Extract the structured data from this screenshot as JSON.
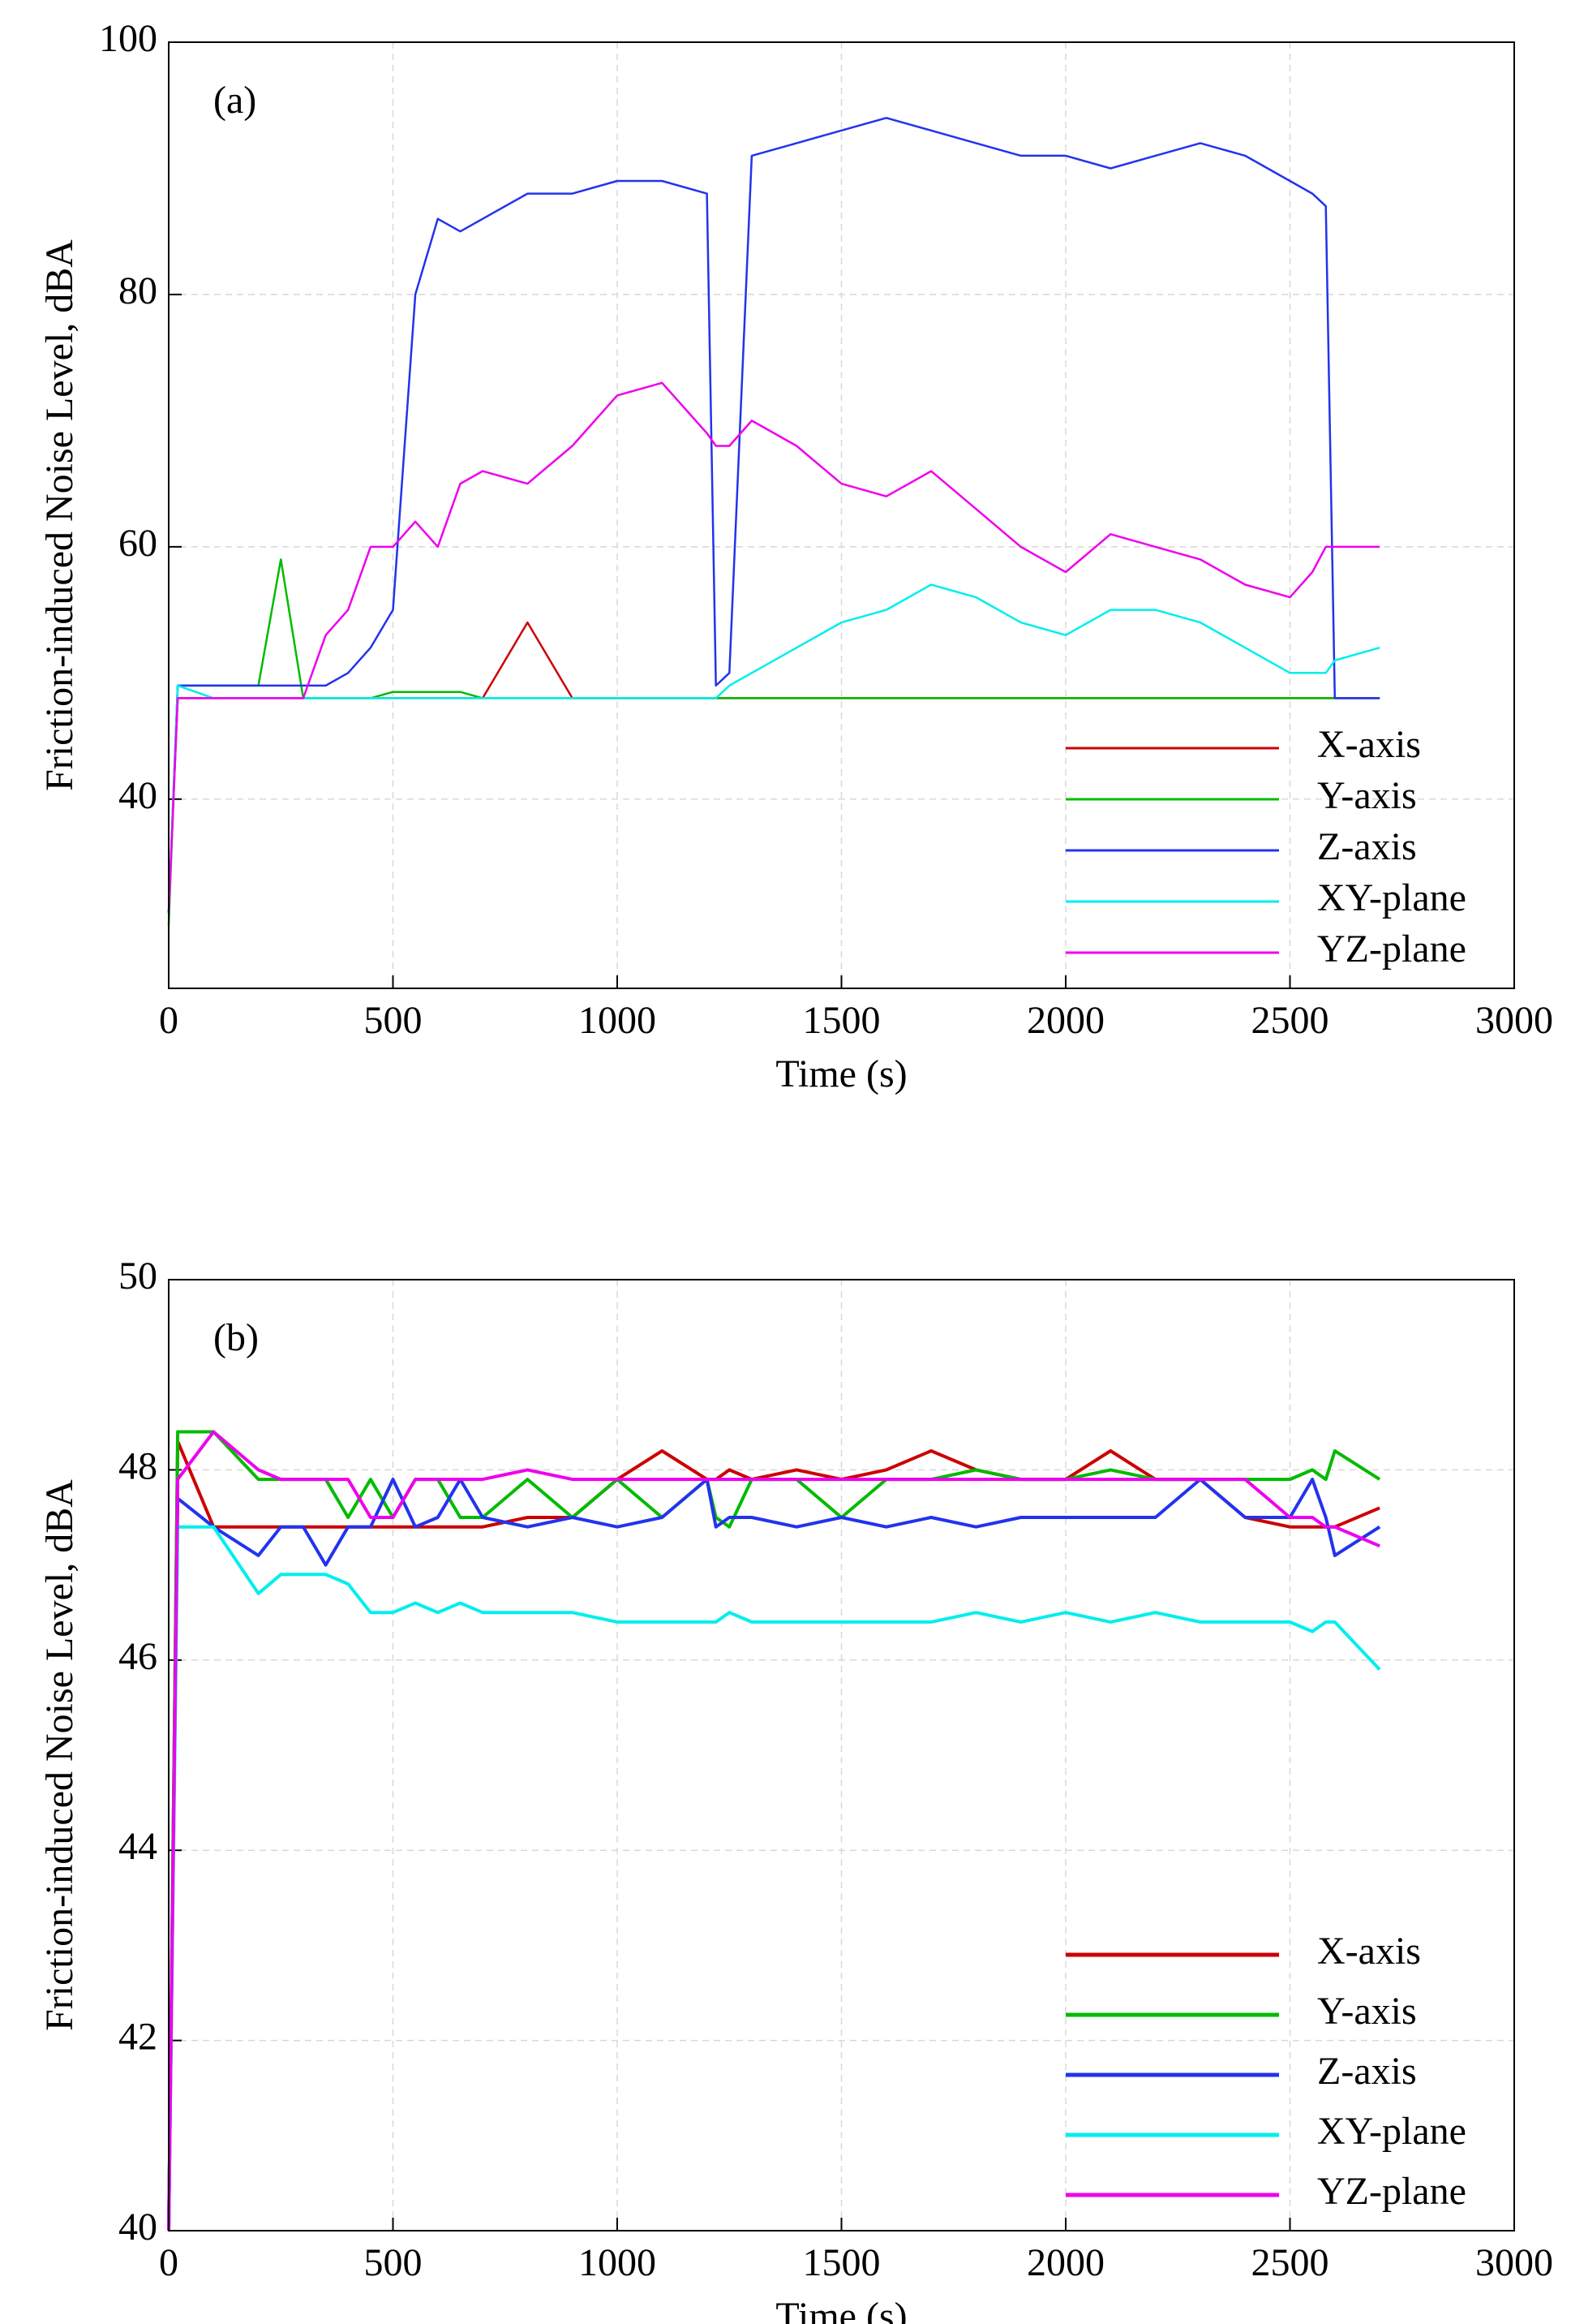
{
  "chart_data": [
    {
      "type": "line",
      "annotation": "(a)",
      "xlabel": "Time (s)",
      "ylabel": "Friction-induced Noise Level, dBA",
      "xlim": [
        0,
        3000
      ],
      "ylim": [
        25,
        100
      ],
      "xticks": [
        0,
        500,
        1000,
        1500,
        2000,
        2500,
        3000
      ],
      "yticks": [
        40,
        60,
        80,
        100
      ],
      "grid": true,
      "legend": "lower right",
      "x": [
        0,
        20,
        100,
        200,
        250,
        300,
        350,
        400,
        450,
        500,
        550,
        600,
        650,
        700,
        800,
        900,
        1000,
        1100,
        1200,
        1220,
        1250,
        1300,
        1400,
        1500,
        1600,
        1700,
        1800,
        1900,
        2000,
        2100,
        2200,
        2300,
        2400,
        2500,
        2550,
        2580,
        2600,
        2700
      ],
      "series": [
        {
          "name": "X-axis",
          "color": "#cc0000",
          "values": [
            31,
            48,
            48,
            48,
            48,
            48,
            48,
            48,
            48,
            48,
            48,
            48,
            48,
            48,
            54,
            48,
            48,
            48,
            48,
            48,
            48,
            48,
            48,
            48,
            48,
            48,
            48,
            48,
            48,
            48,
            48,
            48,
            48,
            48,
            48,
            48,
            48,
            48
          ]
        },
        {
          "name": "Y-axis",
          "color": "#00bb00",
          "values": [
            30,
            49,
            49,
            49,
            59,
            48,
            48,
            48,
            48,
            48.5,
            48.5,
            48.5,
            48.5,
            48,
            48,
            48,
            48,
            48,
            48,
            48,
            48,
            48,
            48,
            48,
            48,
            48,
            48,
            48,
            48,
            48,
            48,
            48,
            48,
            48,
            48,
            48,
            48,
            48
          ]
        },
        {
          "name": "Z-axis",
          "color": "#2233ee",
          "values": [
            31,
            49,
            49,
            49,
            49,
            49,
            49,
            50,
            52,
            55,
            80,
            86,
            85,
            86,
            88,
            88,
            89,
            89,
            88,
            49,
            50,
            91,
            92,
            93,
            94,
            93,
            92,
            91,
            91,
            90,
            91,
            92,
            91,
            89,
            88,
            87,
            48,
            48
          ]
        },
        {
          "name": "XY-plane",
          "color": "#00eeee",
          "values": [
            31,
            49,
            48,
            48,
            48,
            48,
            48,
            48,
            48,
            48,
            48,
            48,
            48,
            48,
            48,
            48,
            48,
            48,
            48,
            48,
            49,
            50,
            52,
            54,
            55,
            57,
            56,
            54,
            53,
            55,
            55,
            54,
            52,
            50,
            50,
            50,
            51,
            52
          ]
        },
        {
          "name": "YZ-plane",
          "color": "#ee00ee",
          "values": [
            31,
            48,
            48,
            48,
            48,
            48,
            53,
            55,
            60,
            60,
            62,
            60,
            65,
            66,
            65,
            68,
            72,
            73,
            69,
            68,
            68,
            70,
            68,
            65,
            64,
            66,
            63,
            60,
            58,
            61,
            60,
            59,
            57,
            56,
            58,
            60,
            60,
            60
          ]
        }
      ]
    },
    {
      "type": "line",
      "annotation": "(b)",
      "xlabel": "Time (s)",
      "ylabel": "Friction-induced Noise Level, dBA",
      "xlim": [
        0,
        3000
      ],
      "ylim": [
        40,
        50
      ],
      "xticks": [
        0,
        500,
        1000,
        1500,
        2000,
        2500,
        3000
      ],
      "yticks": [
        40,
        42,
        44,
        46,
        48,
        50
      ],
      "grid": true,
      "legend": "lower right",
      "x": [
        0,
        20,
        100,
        200,
        250,
        300,
        350,
        400,
        450,
        500,
        550,
        600,
        650,
        700,
        800,
        900,
        1000,
        1100,
        1200,
        1220,
        1250,
        1300,
        1400,
        1500,
        1600,
        1700,
        1800,
        1900,
        2000,
        2100,
        2200,
        2300,
        2400,
        2500,
        2550,
        2580,
        2600,
        2700
      ],
      "series": [
        {
          "name": "X-axis",
          "color": "#cc0000",
          "values": [
            40,
            48.3,
            47.4,
            47.4,
            47.4,
            47.4,
            47.4,
            47.4,
            47.4,
            47.4,
            47.4,
            47.4,
            47.4,
            47.4,
            47.5,
            47.5,
            47.9,
            48.2,
            47.9,
            47.9,
            48,
            47.9,
            48,
            47.9,
            48,
            48.2,
            48,
            47.9,
            47.9,
            48.2,
            47.9,
            47.9,
            47.5,
            47.4,
            47.4,
            47.4,
            47.4,
            47.6
          ]
        },
        {
          "name": "Y-axis",
          "color": "#00bb00",
          "values": [
            40,
            48.4,
            48.4,
            47.9,
            47.9,
            47.9,
            47.9,
            47.5,
            47.9,
            47.5,
            47.9,
            47.9,
            47.5,
            47.5,
            47.9,
            47.5,
            47.9,
            47.5,
            47.9,
            47.5,
            47.4,
            47.9,
            47.9,
            47.5,
            47.9,
            47.9,
            48,
            47.9,
            47.9,
            48,
            47.9,
            47.9,
            47.9,
            47.9,
            48,
            47.9,
            48.2,
            47.9
          ]
        },
        {
          "name": "Z-axis",
          "color": "#2233ee",
          "values": [
            40,
            47.7,
            47.4,
            47.1,
            47.4,
            47.4,
            47,
            47.4,
            47.4,
            47.9,
            47.4,
            47.5,
            47.9,
            47.5,
            47.4,
            47.5,
            47.4,
            47.5,
            47.9,
            47.4,
            47.5,
            47.5,
            47.4,
            47.5,
            47.4,
            47.5,
            47.4,
            47.5,
            47.5,
            47.5,
            47.5,
            47.9,
            47.5,
            47.5,
            47.9,
            47.5,
            47.1,
            47.4
          ]
        },
        {
          "name": "XY-plane",
          "color": "#00eeee",
          "values": [
            40,
            47.4,
            47.4,
            46.7,
            46.9,
            46.9,
            46.9,
            46.8,
            46.5,
            46.5,
            46.6,
            46.5,
            46.6,
            46.5,
            46.5,
            46.5,
            46.4,
            46.4,
            46.4,
            46.4,
            46.5,
            46.4,
            46.4,
            46.4,
            46.4,
            46.4,
            46.5,
            46.4,
            46.5,
            46.4,
            46.5,
            46.4,
            46.4,
            46.4,
            46.3,
            46.4,
            46.4,
            45.9
          ]
        },
        {
          "name": "YZ-plane",
          "color": "#ee00ee",
          "values": [
            40,
            47.9,
            48.4,
            48,
            47.9,
            47.9,
            47.9,
            47.9,
            47.5,
            47.5,
            47.9,
            47.9,
            47.9,
            47.9,
            48,
            47.9,
            47.9,
            47.9,
            47.9,
            47.9,
            47.9,
            47.9,
            47.9,
            47.9,
            47.9,
            47.9,
            47.9,
            47.9,
            47.9,
            47.9,
            47.9,
            47.9,
            47.9,
            47.5,
            47.5,
            47.4,
            47.4,
            47.2
          ]
        }
      ]
    }
  ]
}
